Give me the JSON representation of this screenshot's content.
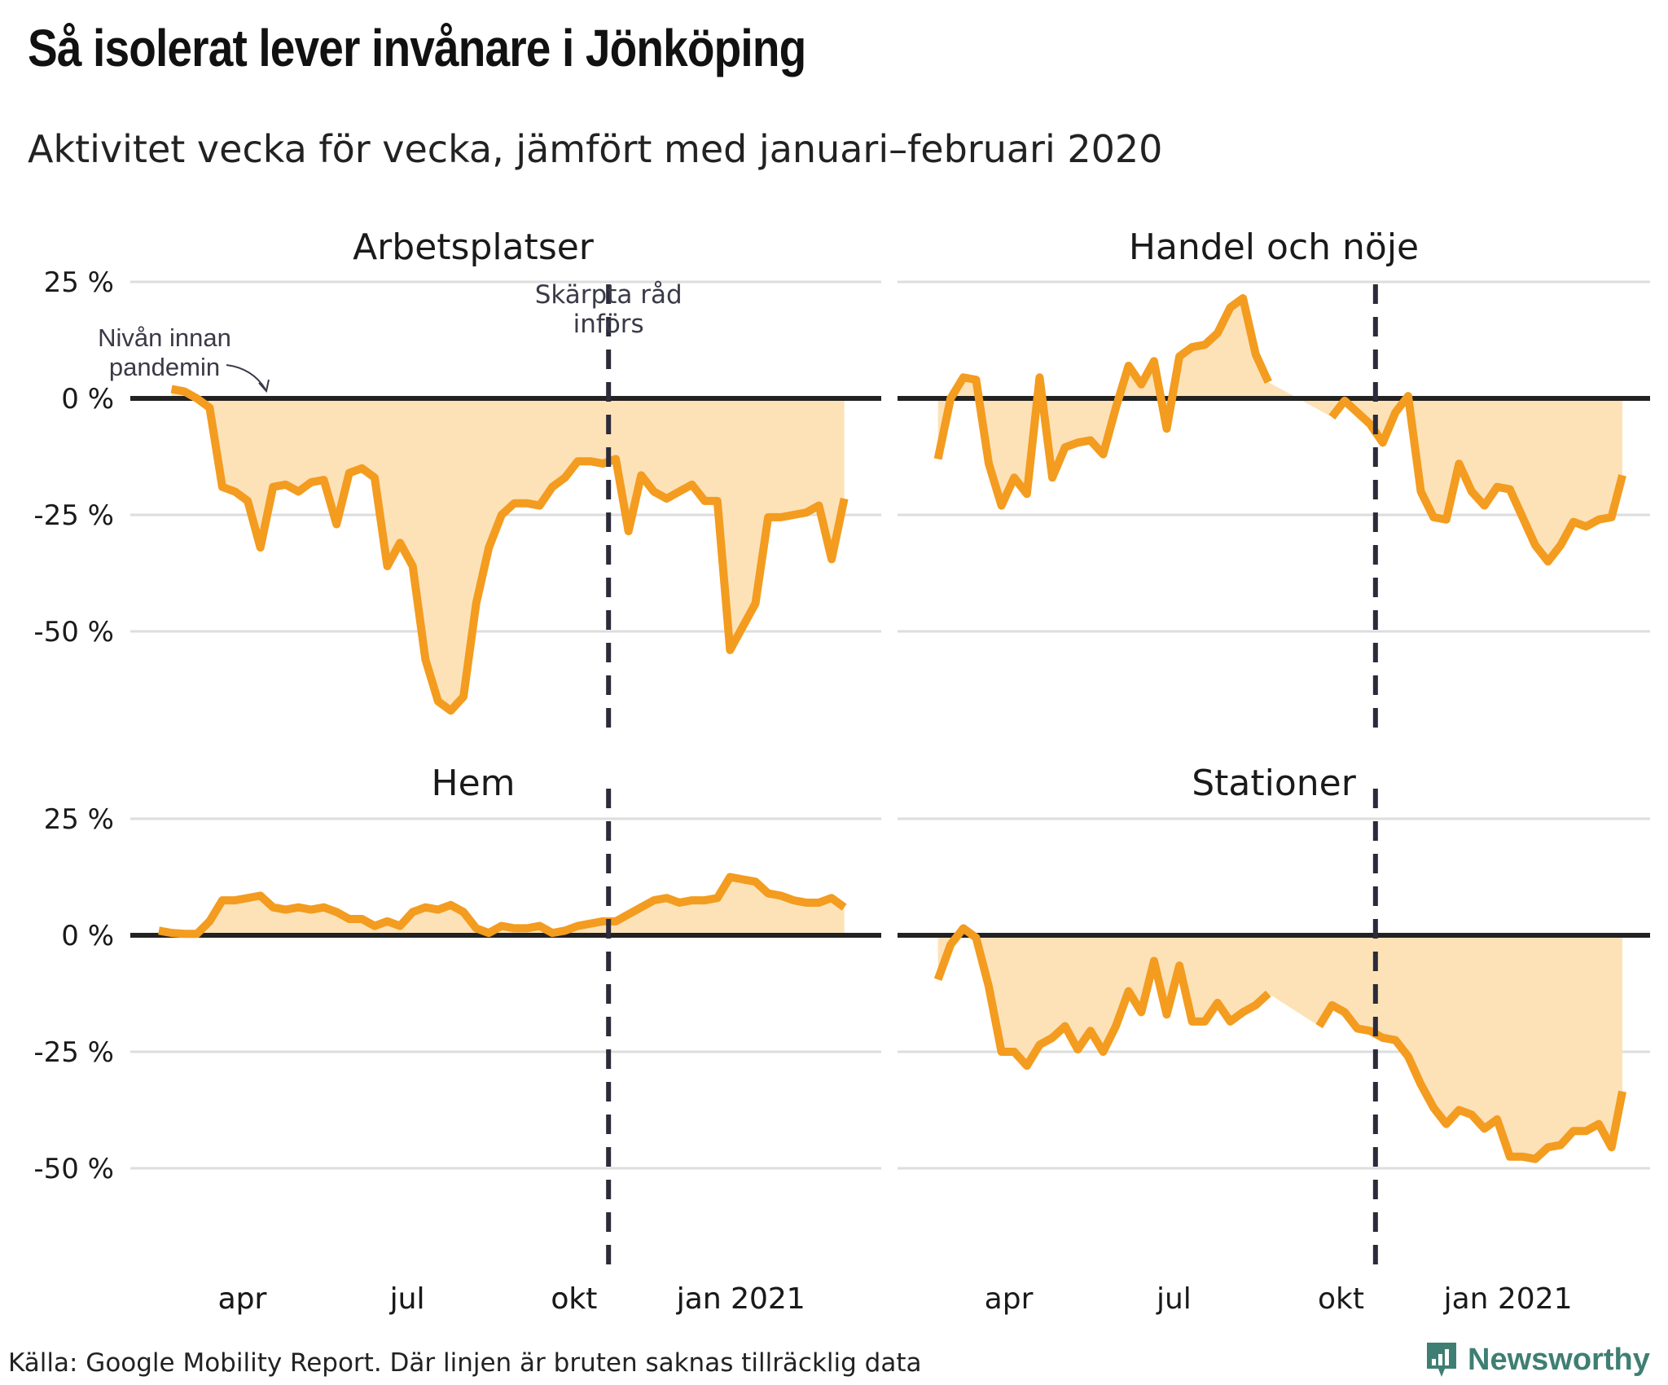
{
  "title": "Så isolerat lever invånare i Jönköping",
  "subtitle": "Aktivitet vecka för vecka, jämfört med januari–februari 2020",
  "footer": "Källa: Google Mobility Report. Där linjen är bruten saknas tillräcklig data",
  "brand": {
    "name": "Newsworthy",
    "icon": "newsworthy-logo-icon",
    "color": "#3f7f73"
  },
  "colors": {
    "line": "#f39c1f",
    "area": "#fde2b8",
    "zero": "#222222",
    "grid": "#dddddd",
    "vline": "#2b2b3a"
  },
  "chart_data": [
    {
      "type": "area",
      "title": "Arbetsplatser",
      "ylim": [
        -70,
        25
      ],
      "yticks": [
        25,
        0,
        -25,
        -50
      ],
      "ytick_labels": [
        "25 %",
        "0 %",
        "-25 %",
        "-50 %"
      ],
      "xticks": [
        {
          "x": "2020-04-01",
          "label": "apr"
        },
        {
          "x": "2020-07-01",
          "label": "jul"
        },
        {
          "x": "2020-10-01",
          "label": "okt"
        },
        {
          "x": "2021-01-01",
          "label": "jan 2021"
        }
      ],
      "xrange": [
        "2020-02-15",
        "2021-03-05"
      ],
      "vline": {
        "x": "2020-10-20",
        "label": [
          "Skärpta råd",
          "införs"
        ]
      },
      "annotation": {
        "text": [
          "Nivån innan",
          "pandemin"
        ]
      },
      "series": [
        {
          "x": "2020-02-22",
          "y": 2
        },
        {
          "x": "2020-02-29",
          "y": 1.5
        },
        {
          "x": "2020-03-07",
          "y": 0
        },
        {
          "x": "2020-03-14",
          "y": -2
        },
        {
          "x": "2020-03-21",
          "y": -19
        },
        {
          "x": "2020-03-28",
          "y": -20
        },
        {
          "x": "2020-04-04",
          "y": -22
        },
        {
          "x": "2020-04-11",
          "y": -32
        },
        {
          "x": "2020-04-18",
          "y": -19
        },
        {
          "x": "2020-04-25",
          "y": -18.5
        },
        {
          "x": "2020-05-02",
          "y": -20
        },
        {
          "x": "2020-05-09",
          "y": -18
        },
        {
          "x": "2020-05-16",
          "y": -17.5
        },
        {
          "x": "2020-05-23",
          "y": -27
        },
        {
          "x": "2020-05-30",
          "y": -16
        },
        {
          "x": "2020-06-06",
          "y": -15
        },
        {
          "x": "2020-06-13",
          "y": -17
        },
        {
          "x": "2020-06-20",
          "y": -36
        },
        {
          "x": "2020-06-27",
          "y": -31
        },
        {
          "x": "2020-07-04",
          "y": -36
        },
        {
          "x": "2020-07-11",
          "y": -56
        },
        {
          "x": "2020-07-18",
          "y": -65
        },
        {
          "x": "2020-07-25",
          "y": -67
        },
        {
          "x": "2020-08-01",
          "y": -64
        },
        {
          "x": "2020-08-08",
          "y": -44
        },
        {
          "x": "2020-08-15",
          "y": -32
        },
        {
          "x": "2020-08-22",
          "y": -25
        },
        {
          "x": "2020-08-29",
          "y": -22.5
        },
        {
          "x": "2020-09-05",
          "y": -22.5
        },
        {
          "x": "2020-09-12",
          "y": -23
        },
        {
          "x": "2020-09-19",
          "y": -19
        },
        {
          "x": "2020-09-26",
          "y": -17
        },
        {
          "x": "2020-10-03",
          "y": -13.5
        },
        {
          "x": "2020-10-10",
          "y": -13.5
        },
        {
          "x": "2020-10-17",
          "y": -14
        },
        {
          "x": "2020-10-24",
          "y": -13
        },
        {
          "x": "2020-10-31",
          "y": -28.5
        },
        {
          "x": "2020-11-07",
          "y": -16.5
        },
        {
          "x": "2020-11-14",
          "y": -20
        },
        {
          "x": "2020-11-21",
          "y": -21.5
        },
        {
          "x": "2020-11-28",
          "y": -20
        },
        {
          "x": "2020-12-05",
          "y": -18.5
        },
        {
          "x": "2020-12-12",
          "y": -22
        },
        {
          "x": "2020-12-19",
          "y": -22
        },
        {
          "x": "2020-12-26",
          "y": -54
        },
        {
          "x": "2021-01-02",
          "y": -49
        },
        {
          "x": "2021-01-09",
          "y": -44
        },
        {
          "x": "2021-01-16",
          "y": -25.5
        },
        {
          "x": "2021-01-23",
          "y": -25.5
        },
        {
          "x": "2021-01-30",
          "y": -25
        },
        {
          "x": "2021-02-06",
          "y": -24.5
        },
        {
          "x": "2021-02-13",
          "y": -23
        },
        {
          "x": "2021-02-20",
          "y": -34.5
        },
        {
          "x": "2021-02-27",
          "y": -21.5
        }
      ]
    },
    {
      "type": "area",
      "title": "Handel och nöje",
      "ylim": [
        -70,
        25
      ],
      "yticks": [
        25,
        0,
        -25,
        -50
      ],
      "ytick_labels": [
        "",
        "",
        "",
        ""
      ],
      "xticks": [],
      "xrange": [
        "2020-02-15",
        "2021-03-05"
      ],
      "vline": {
        "x": "2020-10-20"
      },
      "series": [
        {
          "x": "2020-02-22",
          "y": -13
        },
        {
          "x": "2020-02-29",
          "y": 0
        },
        {
          "x": "2020-03-07",
          "y": 4.5
        },
        {
          "x": "2020-03-14",
          "y": 4
        },
        {
          "x": "2020-03-21",
          "y": -14
        },
        {
          "x": "2020-03-28",
          "y": -23
        },
        {
          "x": "2020-04-04",
          "y": -17
        },
        {
          "x": "2020-04-11",
          "y": -20.5
        },
        {
          "x": "2020-04-18",
          "y": 4.5
        },
        {
          "x": "2020-04-25",
          "y": -17
        },
        {
          "x": "2020-05-02",
          "y": -10.5
        },
        {
          "x": "2020-05-09",
          "y": -9.5
        },
        {
          "x": "2020-05-16",
          "y": -9
        },
        {
          "x": "2020-05-23",
          "y": -12
        },
        {
          "x": "2020-05-30",
          "y": -2
        },
        {
          "x": "2020-06-06",
          "y": 7
        },
        {
          "x": "2020-06-13",
          "y": 3
        },
        {
          "x": "2020-06-20",
          "y": 8
        },
        {
          "x": "2020-06-27",
          "y": -6.5
        },
        {
          "x": "2020-07-04",
          "y": 9
        },
        {
          "x": "2020-07-11",
          "y": 11
        },
        {
          "x": "2020-07-18",
          "y": 11.5
        },
        {
          "x": "2020-07-25",
          "y": 14
        },
        {
          "x": "2020-08-01",
          "y": 19.5
        },
        {
          "x": "2020-08-08",
          "y": 21.5
        },
        {
          "x": "2020-08-15",
          "y": 9.5
        },
        {
          "x": "2020-08-22",
          "y": 3.5
        },
        null,
        {
          "x": "2020-09-26",
          "y": -4
        },
        {
          "x": "2020-10-03",
          "y": -0.5
        },
        {
          "x": "2020-10-10",
          "y": -3
        },
        {
          "x": "2020-10-17",
          "y": -5.5
        },
        {
          "x": "2020-10-24",
          "y": -9.5
        },
        {
          "x": "2020-10-31",
          "y": -3
        },
        {
          "x": "2020-11-07",
          "y": 0.5
        },
        {
          "x": "2020-11-14",
          "y": -20
        },
        {
          "x": "2020-11-21",
          "y": -25.5
        },
        {
          "x": "2020-11-28",
          "y": -26
        },
        {
          "x": "2020-12-05",
          "y": -14
        },
        {
          "x": "2020-12-12",
          "y": -20
        },
        {
          "x": "2020-12-19",
          "y": -23
        },
        {
          "x": "2020-12-26",
          "y": -19
        },
        {
          "x": "2021-01-02",
          "y": -19.5
        },
        {
          "x": "2021-01-09",
          "y": -25.5
        },
        {
          "x": "2021-01-16",
          "y": -31.5
        },
        {
          "x": "2021-01-23",
          "y": -35
        },
        {
          "x": "2021-01-30",
          "y": -31.5
        },
        {
          "x": "2021-02-06",
          "y": -26.5
        },
        {
          "x": "2021-02-13",
          "y": -27.5
        },
        {
          "x": "2021-02-20",
          "y": -26
        },
        {
          "x": "2021-02-27",
          "y": -25.5
        },
        {
          "x": "2021-03-05",
          "y": -16.5
        }
      ]
    },
    {
      "type": "area",
      "title": "Hem",
      "ylim": [
        -70,
        25
      ],
      "yticks": [
        25,
        0,
        -25,
        -50
      ],
      "ytick_labels": [
        "25 %",
        "0 %",
        "-25 %",
        "-50 %"
      ],
      "xticks": [
        {
          "x": "2020-04-01",
          "label": "apr"
        },
        {
          "x": "2020-07-01",
          "label": "jul"
        },
        {
          "x": "2020-10-01",
          "label": "okt"
        },
        {
          "x": "2021-01-01",
          "label": "jan 2021"
        }
      ],
      "xrange": [
        "2020-02-15",
        "2021-03-05"
      ],
      "vline": {
        "x": "2020-10-20"
      },
      "series": [
        {
          "x": "2020-02-15",
          "y": 1
        },
        {
          "x": "2020-02-22",
          "y": 0.5
        },
        {
          "x": "2020-02-29",
          "y": 0.3
        },
        {
          "x": "2020-03-07",
          "y": 0.3
        },
        {
          "x": "2020-03-14",
          "y": 3
        },
        {
          "x": "2020-03-21",
          "y": 7.5
        },
        {
          "x": "2020-03-28",
          "y": 7.5
        },
        {
          "x": "2020-04-04",
          "y": 8
        },
        {
          "x": "2020-04-11",
          "y": 8.5
        },
        {
          "x": "2020-04-18",
          "y": 6
        },
        {
          "x": "2020-04-25",
          "y": 5.5
        },
        {
          "x": "2020-05-02",
          "y": 6
        },
        {
          "x": "2020-05-09",
          "y": 5.5
        },
        {
          "x": "2020-05-16",
          "y": 6
        },
        {
          "x": "2020-05-23",
          "y": 5
        },
        {
          "x": "2020-05-30",
          "y": 3.5
        },
        {
          "x": "2020-06-06",
          "y": 3.5
        },
        {
          "x": "2020-06-13",
          "y": 2
        },
        {
          "x": "2020-06-20",
          "y": 3
        },
        {
          "x": "2020-06-27",
          "y": 2
        },
        {
          "x": "2020-07-04",
          "y": 5
        },
        {
          "x": "2020-07-11",
          "y": 6
        },
        {
          "x": "2020-07-18",
          "y": 5.5
        },
        {
          "x": "2020-07-25",
          "y": 6.5
        },
        {
          "x": "2020-08-01",
          "y": 5
        },
        {
          "x": "2020-08-08",
          "y": 1.5
        },
        {
          "x": "2020-08-15",
          "y": 0.5
        },
        {
          "x": "2020-08-22",
          "y": 2
        },
        {
          "x": "2020-08-29",
          "y": 1.5
        },
        {
          "x": "2020-09-05",
          "y": 1.5
        },
        {
          "x": "2020-09-12",
          "y": 2
        },
        {
          "x": "2020-09-19",
          "y": 0.5
        },
        {
          "x": "2020-09-26",
          "y": 1
        },
        {
          "x": "2020-10-03",
          "y": 2
        },
        {
          "x": "2020-10-10",
          "y": 2.5
        },
        {
          "x": "2020-10-17",
          "y": 3
        },
        {
          "x": "2020-10-24",
          "y": 3
        },
        {
          "x": "2020-10-31",
          "y": 4.5
        },
        {
          "x": "2020-11-07",
          "y": 6
        },
        {
          "x": "2020-11-14",
          "y": 7.5
        },
        {
          "x": "2020-11-21",
          "y": 8
        },
        {
          "x": "2020-11-28",
          "y": 7
        },
        {
          "x": "2020-12-05",
          "y": 7.5
        },
        {
          "x": "2020-12-12",
          "y": 7.5
        },
        {
          "x": "2020-12-19",
          "y": 8
        },
        {
          "x": "2020-12-26",
          "y": 12.5
        },
        {
          "x": "2021-01-02",
          "y": 12
        },
        {
          "x": "2021-01-09",
          "y": 11.5
        },
        {
          "x": "2021-01-16",
          "y": 9
        },
        {
          "x": "2021-01-23",
          "y": 8.5
        },
        {
          "x": "2021-01-30",
          "y": 7.5
        },
        {
          "x": "2021-02-06",
          "y": 7
        },
        {
          "x": "2021-02-13",
          "y": 7
        },
        {
          "x": "2021-02-20",
          "y": 8
        },
        {
          "x": "2021-02-27",
          "y": 6
        }
      ]
    },
    {
      "type": "area",
      "title": "Stationer",
      "ylim": [
        -70,
        25
      ],
      "yticks": [
        25,
        0,
        -25,
        -50
      ],
      "ytick_labels": [
        "",
        "",
        "",
        ""
      ],
      "xticks": [
        {
          "x": "2020-04-01",
          "label": "apr"
        },
        {
          "x": "2020-07-01",
          "label": "jul"
        },
        {
          "x": "2020-10-01",
          "label": "okt"
        },
        {
          "x": "2021-01-01",
          "label": "jan 2021"
        }
      ],
      "xrange": [
        "2020-02-15",
        "2021-03-05"
      ],
      "vline": {
        "x": "2020-10-20"
      },
      "series": [
        {
          "x": "2020-02-22",
          "y": -9.5
        },
        {
          "x": "2020-02-29",
          "y": -2
        },
        {
          "x": "2020-03-07",
          "y": 1.5
        },
        {
          "x": "2020-03-14",
          "y": -0.5
        },
        {
          "x": "2020-03-21",
          "y": -11
        },
        {
          "x": "2020-03-28",
          "y": -25
        },
        {
          "x": "2020-04-04",
          "y": -25
        },
        {
          "x": "2020-04-11",
          "y": -28
        },
        {
          "x": "2020-04-18",
          "y": -23.5
        },
        {
          "x": "2020-04-25",
          "y": -22
        },
        {
          "x": "2020-05-02",
          "y": -19.5
        },
        {
          "x": "2020-05-09",
          "y": -24.5
        },
        {
          "x": "2020-05-16",
          "y": -20.5
        },
        {
          "x": "2020-05-23",
          "y": -25
        },
        {
          "x": "2020-05-30",
          "y": -19.5
        },
        {
          "x": "2020-06-06",
          "y": -12
        },
        {
          "x": "2020-06-13",
          "y": -16.5
        },
        {
          "x": "2020-06-20",
          "y": -5.5
        },
        {
          "x": "2020-06-27",
          "y": -17
        },
        {
          "x": "2020-07-04",
          "y": -6.5
        },
        {
          "x": "2020-07-11",
          "y": -18.5
        },
        {
          "x": "2020-07-18",
          "y": -18.5
        },
        {
          "x": "2020-07-25",
          "y": -14.5
        },
        {
          "x": "2020-08-01",
          "y": -18.5
        },
        {
          "x": "2020-08-08",
          "y": -16.5
        },
        {
          "x": "2020-08-15",
          "y": -15
        },
        {
          "x": "2020-08-22",
          "y": -12.5
        },
        null,
        {
          "x": "2020-09-19",
          "y": -19.5
        },
        {
          "x": "2020-09-26",
          "y": -15
        },
        {
          "x": "2020-10-03",
          "y": -16.5
        },
        {
          "x": "2020-10-10",
          "y": -20
        },
        {
          "x": "2020-10-17",
          "y": -20.5
        },
        {
          "x": "2020-10-24",
          "y": -22
        },
        {
          "x": "2020-10-31",
          "y": -22.5
        },
        {
          "x": "2020-11-07",
          "y": -26
        },
        {
          "x": "2020-11-14",
          "y": -32
        },
        {
          "x": "2020-11-21",
          "y": -37
        },
        {
          "x": "2020-11-28",
          "y": -40.5
        },
        {
          "x": "2020-12-05",
          "y": -37.5
        },
        {
          "x": "2020-12-12",
          "y": -38.5
        },
        {
          "x": "2020-12-19",
          "y": -41.5
        },
        {
          "x": "2020-12-26",
          "y": -39.5
        },
        {
          "x": "2021-01-02",
          "y": -47.5
        },
        {
          "x": "2021-01-09",
          "y": -47.5
        },
        {
          "x": "2021-01-16",
          "y": -48
        },
        {
          "x": "2021-01-23",
          "y": -45.5
        },
        {
          "x": "2021-01-30",
          "y": -45
        },
        {
          "x": "2021-02-06",
          "y": -42
        },
        {
          "x": "2021-02-13",
          "y": -42
        },
        {
          "x": "2021-02-20",
          "y": -40.5
        },
        {
          "x": "2021-02-27",
          "y": -45.5
        },
        {
          "x": "2021-03-05",
          "y": -33.5
        }
      ]
    }
  ]
}
